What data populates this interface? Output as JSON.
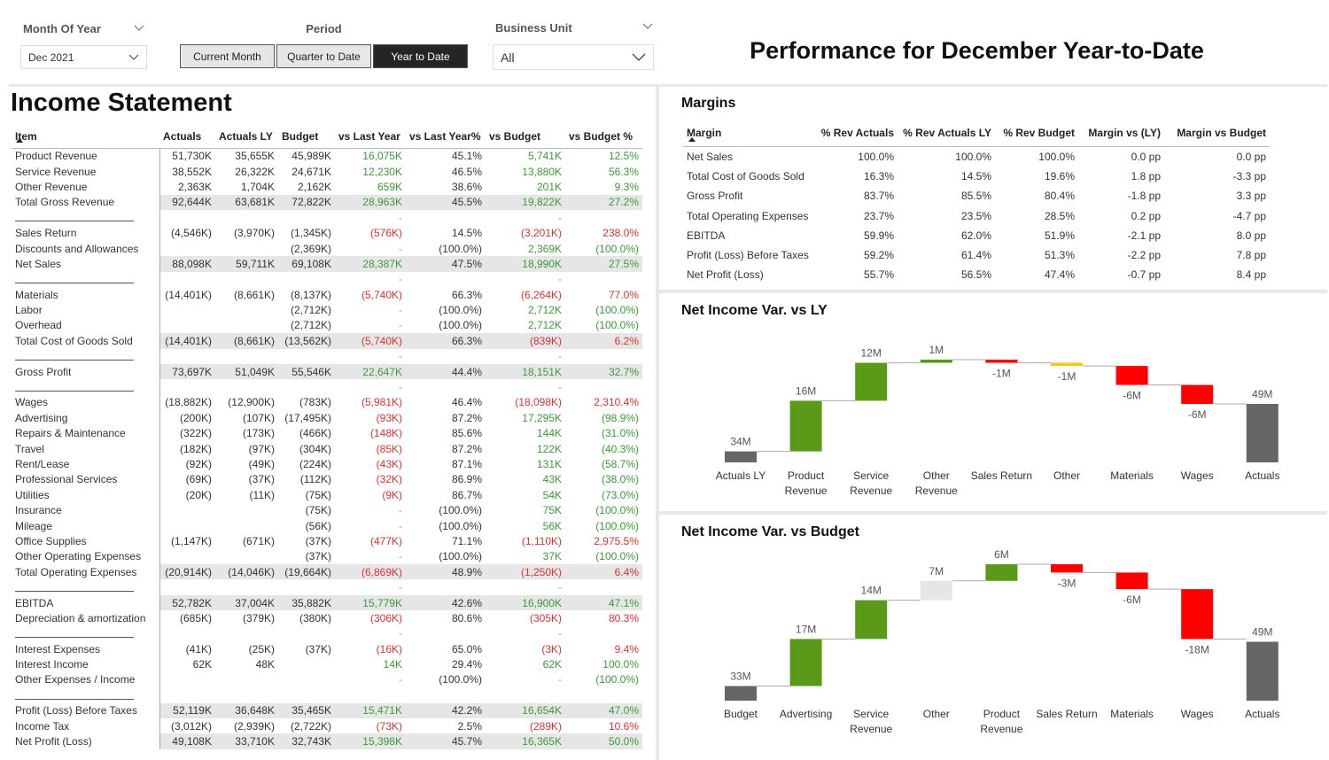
{
  "filters": {
    "month_of_year": {
      "label": "Month Of Year",
      "value": "Dec 2021"
    },
    "period": {
      "label": "Period",
      "options": [
        "Current Month",
        "Quarter to Date",
        "Year to Date"
      ],
      "selected": 2
    },
    "business_unit": {
      "label": "Business Unit",
      "value": "All"
    }
  },
  "title": "Performance for December Year-to-Date",
  "income_statement": {
    "title": "Income Statement",
    "columns": [
      "Item",
      "Actuals",
      "Actuals LY",
      "Budget",
      "vs Last Year",
      "vs Last Year%",
      "vs Budget",
      "vs Budget %"
    ],
    "rows": [
      {
        "cells": [
          "Product Revenue",
          "51,730K",
          "35,655K",
          "45,989K",
          "16,075K",
          "45.1%",
          "5,741K",
          "12.5%"
        ]
      },
      {
        "cells": [
          "Service Revenue",
          "38,552K",
          "26,322K",
          "24,671K",
          "12,230K",
          "46.5%",
          "13,880K",
          "56.3%"
        ]
      },
      {
        "cells": [
          "Other Revenue",
          "2,363K",
          "1,704K",
          "2,162K",
          "659K",
          "38.6%",
          "201K",
          "9.3%"
        ]
      },
      {
        "cells": [
          "Total Gross Revenue",
          "92,644K",
          "63,681K",
          "72,822K",
          "28,963K",
          "45.5%",
          "19,822K",
          "27.2%"
        ],
        "total": true
      },
      {
        "cells": [
          null,
          null,
          null,
          null,
          "-",
          null,
          "-",
          null
        ]
      },
      {
        "cells": [
          "Sales Return",
          "(4,546K)",
          "(3,970K)",
          "(1,345K)",
          "(576K)",
          "14.5%",
          "(3,201K)",
          "238.0%"
        ]
      },
      {
        "cells": [
          "Discounts and Allowances",
          null,
          null,
          "(2,369K)",
          "-",
          "(100.0%)",
          "2,369K",
          "(100.0%)"
        ]
      },
      {
        "cells": [
          "Net Sales",
          "88,098K",
          "59,711K",
          "69,108K",
          "28,387K",
          "47.5%",
          "18,990K",
          "27.5%"
        ],
        "total": true
      },
      {
        "cells": [
          null,
          null,
          null,
          null,
          "-",
          null,
          "-",
          null
        ]
      },
      {
        "cells": [
          "Materials",
          "(14,401K)",
          "(8,661K)",
          "(8,137K)",
          "(5,740K)",
          "66.3%",
          "(6,264K)",
          "77.0%"
        ]
      },
      {
        "cells": [
          "Labor",
          null,
          null,
          "(2,712K)",
          "-",
          "(100.0%)",
          "2,712K",
          "(100.0%)"
        ]
      },
      {
        "cells": [
          "Overhead",
          null,
          null,
          "(2,712K)",
          "-",
          "(100.0%)",
          "2,712K",
          "(100.0%)"
        ]
      },
      {
        "cells": [
          "Total Cost of Goods Sold",
          "(14,401K)",
          "(8,661K)",
          "(13,562K)",
          "(5,740K)",
          "66.3%",
          "(839K)",
          "6.2%"
        ],
        "total": true
      },
      {
        "cells": [
          null,
          null,
          null,
          null,
          "-",
          null,
          "-",
          null
        ]
      },
      {
        "cells": [
          "Gross Profit",
          "73,697K",
          "51,049K",
          "55,546K",
          "22,647K",
          "44.4%",
          "18,151K",
          "32.7%"
        ],
        "total": true
      },
      {
        "cells": [
          null,
          null,
          null,
          null,
          "-",
          null,
          "-",
          null
        ]
      },
      {
        "cells": [
          "Wages",
          "(18,882K)",
          "(12,900K)",
          "(783K)",
          "(5,981K)",
          "46.4%",
          "(18,098K)",
          "2,310.4%"
        ]
      },
      {
        "cells": [
          "Advertising",
          "(200K)",
          "(107K)",
          "(17,495K)",
          "(93K)",
          "87.2%",
          "17,295K",
          "(98.9%)"
        ]
      },
      {
        "cells": [
          "Repairs & Maintenance",
          "(322K)",
          "(173K)",
          "(466K)",
          "(148K)",
          "85.6%",
          "144K",
          "(31.0%)"
        ]
      },
      {
        "cells": [
          "Travel",
          "(182K)",
          "(97K)",
          "(304K)",
          "(85K)",
          "87.2%",
          "122K",
          "(40.3%)"
        ]
      },
      {
        "cells": [
          "Rent/Lease",
          "(92K)",
          "(49K)",
          "(224K)",
          "(43K)",
          "87.1%",
          "131K",
          "(58.7%)"
        ]
      },
      {
        "cells": [
          "Professional Services",
          "(69K)",
          "(37K)",
          "(112K)",
          "(32K)",
          "86.9%",
          "43K",
          "(38.0%)"
        ]
      },
      {
        "cells": [
          "Utilities",
          "(20K)",
          "(11K)",
          "(75K)",
          "(9K)",
          "86.7%",
          "54K",
          "(73.0%)"
        ]
      },
      {
        "cells": [
          "Insurance",
          null,
          null,
          "(75K)",
          "-",
          "(100.0%)",
          "75K",
          "(100.0%)"
        ]
      },
      {
        "cells": [
          "Mileage",
          null,
          null,
          "(56K)",
          "-",
          "(100.0%)",
          "56K",
          "(100.0%)"
        ]
      },
      {
        "cells": [
          "Office Supplies",
          "(1,147K)",
          "(671K)",
          "(37K)",
          "(477K)",
          "71.1%",
          "(1,110K)",
          "2,975.5%"
        ]
      },
      {
        "cells": [
          "Other Operating Expenses",
          null,
          null,
          "(37K)",
          "-",
          "(100.0%)",
          "37K",
          "(100.0%)"
        ]
      },
      {
        "cells": [
          "Total Operating Expenses",
          "(20,914K)",
          "(14,046K)",
          "(19,664K)",
          "(6,869K)",
          "48.9%",
          "(1,250K)",
          "6.4%"
        ],
        "total": true
      },
      {
        "cells": [
          null,
          null,
          null,
          null,
          "-",
          null,
          "-",
          null
        ]
      },
      {
        "cells": [
          "EBITDA",
          "52,782K",
          "37,004K",
          "35,882K",
          "15,779K",
          "42.6%",
          "16,900K",
          "47.1%"
        ],
        "total": true
      },
      {
        "cells": [
          "Depreciation & amortization",
          "(685K)",
          "(379K)",
          "(380K)",
          "(306K)",
          "80.6%",
          "(305K)",
          "80.3%"
        ]
      },
      {
        "cells": [
          null,
          null,
          null,
          null,
          "-",
          null,
          "-",
          null
        ]
      },
      {
        "cells": [
          "Interest Expenses",
          "(41K)",
          "(25K)",
          "(37K)",
          "(16K)",
          "65.0%",
          "(3K)",
          "9.4%"
        ]
      },
      {
        "cells": [
          "Interest Income",
          "62K",
          "48K",
          null,
          "14K",
          "29.4%",
          "62K",
          "100.0%"
        ]
      },
      {
        "cells": [
          "Other Expenses / Income",
          null,
          null,
          null,
          "-",
          "(100.0%)",
          "-",
          "(100.0%)"
        ]
      },
      {
        "cells": [
          null,
          null,
          null,
          null,
          null,
          null,
          null,
          null
        ]
      },
      {
        "cells": [
          "Profit (Loss) Before Taxes",
          "52,119K",
          "36,648K",
          "35,465K",
          "15,471K",
          "42.2%",
          "16,654K",
          "47.0%"
        ],
        "total": true
      },
      {
        "cells": [
          "Income Tax",
          "(3,012K)",
          "(2,939K)",
          "(2,722K)",
          "(73K)",
          "2.5%",
          "(289K)",
          "10.6%"
        ]
      },
      {
        "cells": [
          "Net Profit (Loss)",
          "49,108K",
          "33,710K",
          "32,743K",
          "15,398K",
          "45.7%",
          "16,365K",
          "50.0%"
        ],
        "total": true
      }
    ]
  },
  "margins": {
    "title": "Margins",
    "columns": [
      "Margin",
      "% Rev Actuals",
      "% Rev Actuals LY",
      "% Rev Budget",
      "Margin vs (LY)",
      "Margin vs Budget"
    ],
    "rows": [
      [
        "Net Sales",
        "100.0%",
        "100.0%",
        "100.0%",
        "0.0 pp",
        "0.0 pp"
      ],
      [
        "Total Cost of Goods Sold",
        "16.3%",
        "14.5%",
        "19.6%",
        "1.8 pp",
        "-3.3 pp"
      ],
      [
        "Gross Profit",
        "83.7%",
        "85.5%",
        "80.4%",
        "-1.8 pp",
        "3.3 pp"
      ],
      [
        "Total Operating Expenses",
        "23.7%",
        "23.5%",
        "28.5%",
        "0.2 pp",
        "-4.7 pp"
      ],
      [
        "EBITDA",
        "59.9%",
        "62.0%",
        "51.9%",
        "-2.1 pp",
        "8.0 pp"
      ],
      [
        "Profit (Loss) Before Taxes",
        "59.2%",
        "61.4%",
        "51.3%",
        "-2.2 pp",
        "7.8 pp"
      ],
      [
        "Net Profit (Loss)",
        "55.7%",
        "56.5%",
        "47.4%",
        "-0.7 pp",
        "8.4 pp"
      ]
    ]
  },
  "chart_data": [
    {
      "type": "waterfall",
      "title": "Net Income Var. vs LY",
      "categories": [
        "Actuals LY",
        "Product Revenue",
        "Service Revenue",
        "Other Revenue",
        "Sales Return",
        "Other",
        "Materials",
        "Wages",
        "Actuals"
      ],
      "values": [
        34,
        16,
        12,
        1,
        -1,
        -1,
        -6,
        -6,
        49
      ],
      "value_labels": [
        "34M",
        "16M",
        "12M",
        "1M",
        "-1M",
        "-1M",
        "-6M",
        "-6M",
        "49M"
      ],
      "colors": [
        "#666666",
        "#5a9a18",
        "#5a9a18",
        "#5a9a18",
        "#ff0000",
        "#f2c811",
        "#ff0000",
        "#ff0000",
        "#666666"
      ]
    },
    {
      "type": "waterfall",
      "title": "Net Income Var. vs Budget",
      "categories": [
        "Budget",
        "Advertising",
        "Service Revenue",
        "Other",
        "Product Revenue",
        "Sales Return",
        "Materials",
        "Wages",
        "Actuals"
      ],
      "values": [
        33,
        17,
        14,
        7,
        6,
        -3,
        -6,
        -18,
        49
      ],
      "value_labels": [
        "33M",
        "17M",
        "14M",
        "7M",
        "6M",
        "-3M",
        "-6M",
        "-18M",
        "49M"
      ],
      "colors": [
        "#666666",
        "#5a9a18",
        "#5a9a18",
        "#e6e6e6",
        "#5a9a18",
        "#ff0000",
        "#ff0000",
        "#ff0000",
        "#666666"
      ]
    }
  ]
}
